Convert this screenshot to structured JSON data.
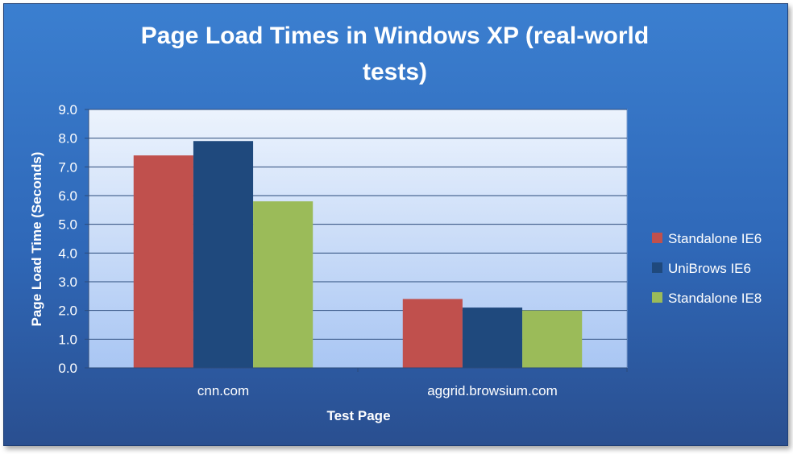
{
  "chart_data": {
    "type": "bar",
    "title": [
      "Page Load Times in Windows XP (real-world",
      "tests)"
    ],
    "xlabel": "Test Page",
    "ylabel": "Page Load Time (Seconds)",
    "categories": [
      "cnn.com",
      "aggrid.browsium.com"
    ],
    "ylim": [
      0,
      9
    ],
    "yticks": [
      "0.0",
      "1.0",
      "2.0",
      "3.0",
      "4.0",
      "5.0",
      "6.0",
      "7.0",
      "8.0",
      "9.0"
    ],
    "grid": true,
    "legend_position": "right",
    "series": [
      {
        "name": "Standalone IE6",
        "color": "#c0504d",
        "values": [
          7.4,
          2.4
        ]
      },
      {
        "name": "UniBrows IE6",
        "color": "#1f497d",
        "values": [
          7.9,
          2.1
        ]
      },
      {
        "name": "Standalone IE8",
        "color": "#9bbb59",
        "values": [
          5.8,
          2.0
        ]
      }
    ]
  }
}
